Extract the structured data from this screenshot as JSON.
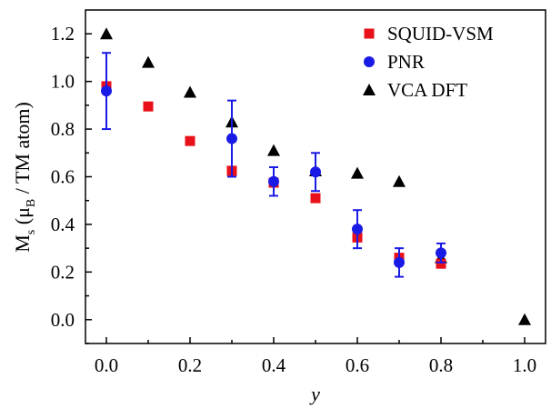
{
  "chart_data": {
    "type": "scatter",
    "xlabel": "y",
    "ylabel": "M",
    "ylabel_sub": "s",
    "ylabel_paren": "(μ",
    "ylabel_b": "B",
    "ylabel_rest": " / TM atom)",
    "xlim": [
      -0.05,
      1.05
    ],
    "ylim": [
      -0.1,
      1.3
    ],
    "xticks": [
      "0.0",
      "0.2",
      "0.4",
      "0.6",
      "0.8",
      "1.0"
    ],
    "yticks": [
      "0.0",
      "0.2",
      "0.4",
      "0.6",
      "0.8",
      "1.0",
      "1.2"
    ],
    "legend_position": "top-right",
    "grid": false,
    "series": [
      {
        "name": "SQUID-VSM",
        "marker": "square",
        "color": "#e8111a",
        "points": [
          {
            "x": 0.0,
            "y": 0.98
          },
          {
            "x": 0.1,
            "y": 0.895
          },
          {
            "x": 0.2,
            "y": 0.75
          },
          {
            "x": 0.3,
            "y": 0.625
          },
          {
            "x": 0.4,
            "y": 0.575
          },
          {
            "x": 0.5,
            "y": 0.51
          },
          {
            "x": 0.6,
            "y": 0.345
          },
          {
            "x": 0.7,
            "y": 0.26
          },
          {
            "x": 0.8,
            "y": 0.235
          }
        ]
      },
      {
        "name": "PNR",
        "marker": "circle",
        "color": "#1a1ae6",
        "points": [
          {
            "x": 0.0,
            "y": 0.96,
            "err": 0.16
          },
          {
            "x": 0.3,
            "y": 0.76,
            "err": 0.16
          },
          {
            "x": 0.4,
            "y": 0.58,
            "err": 0.06
          },
          {
            "x": 0.5,
            "y": 0.62,
            "err": 0.08
          },
          {
            "x": 0.6,
            "y": 0.38,
            "err": 0.08
          },
          {
            "x": 0.7,
            "y": 0.24,
            "err": 0.06
          },
          {
            "x": 0.8,
            "y": 0.28,
            "err": 0.04
          }
        ]
      },
      {
        "name": "VCA DFT",
        "marker": "triangle",
        "color": "#000000",
        "points": [
          {
            "x": 0.0,
            "y": 1.2
          },
          {
            "x": 0.1,
            "y": 1.08
          },
          {
            "x": 0.2,
            "y": 0.955
          },
          {
            "x": 0.3,
            "y": 0.83
          },
          {
            "x": 0.4,
            "y": 0.71
          },
          {
            "x": 0.5,
            "y": 0.625
          },
          {
            "x": 0.6,
            "y": 0.615
          },
          {
            "x": 0.7,
            "y": 0.58
          },
          {
            "x": 0.8,
            "y": 0.26
          },
          {
            "x": 1.0,
            "y": 0.0
          }
        ]
      }
    ]
  }
}
